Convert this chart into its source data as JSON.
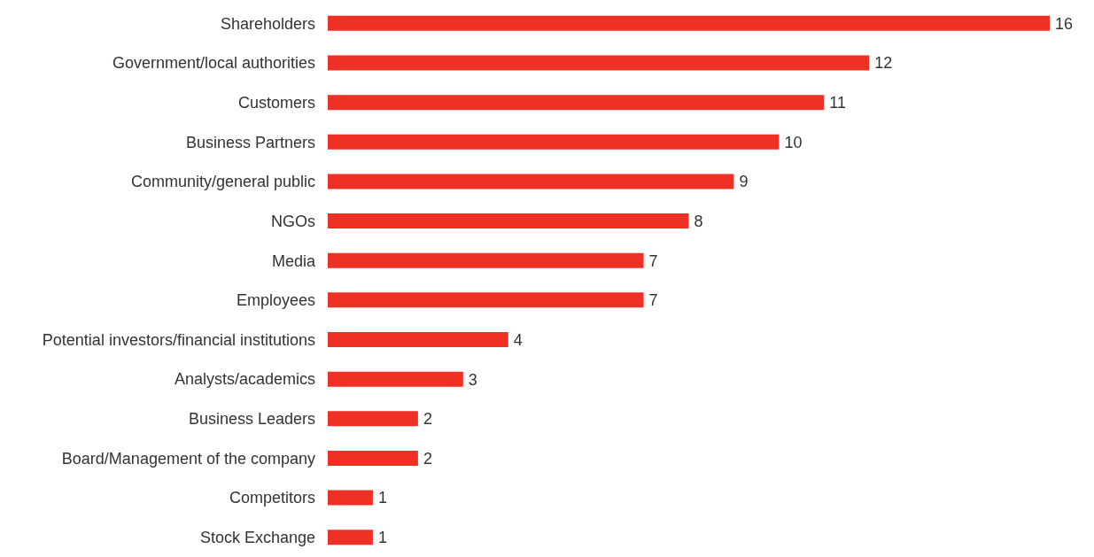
{
  "chart_data": {
    "type": "bar",
    "orientation": "horizontal",
    "categories": [
      "Shareholders",
      "Government/local authorities",
      "Customers",
      "Business Partners",
      "Community/general public",
      "NGOs",
      "Media",
      "Employees",
      "Potential investors/financial institutions",
      "Analysts/academics",
      "Business Leaders",
      "Board/Management of the company",
      "Competitors",
      "Stock Exchange"
    ],
    "values": [
      16,
      12,
      11,
      10,
      9,
      8,
      7,
      7,
      4,
      3,
      2,
      2,
      1,
      1
    ],
    "color": "#ee3124",
    "data_labels": true,
    "grid": false,
    "legend": false
  }
}
